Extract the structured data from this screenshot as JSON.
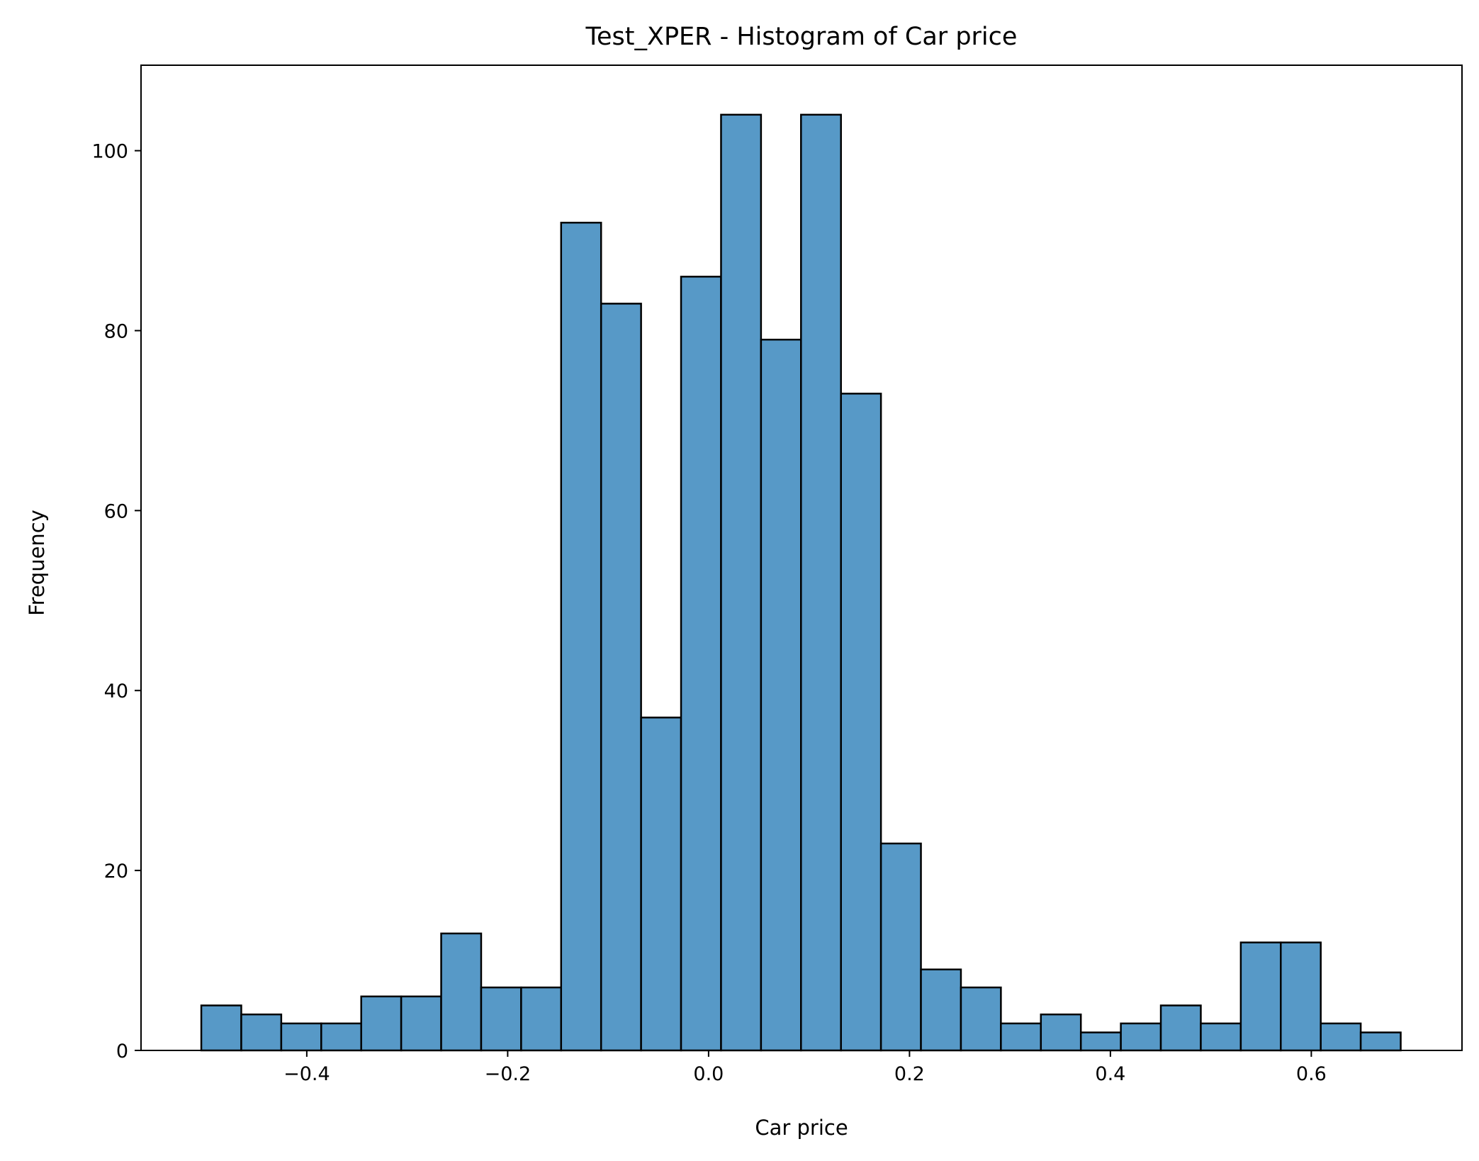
{
  "chart_data": {
    "type": "bar",
    "title": "Test_XPER - Histogram of Car price",
    "xlabel": "Car price",
    "ylabel": "Frequency",
    "bar_color": "#5799c7",
    "edge_color": "#000000",
    "bin_start": -0.505,
    "bin_width": 0.0398,
    "values": [
      5,
      4,
      3,
      3,
      6,
      6,
      13,
      7,
      7,
      92,
      83,
      37,
      86,
      104,
      79,
      104,
      73,
      23,
      9,
      7,
      3,
      4,
      2,
      3,
      5,
      3,
      12,
      12,
      3,
      2
    ],
    "xlim": [
      -0.565,
      0.75
    ],
    "ylim": [
      0,
      109.5
    ],
    "xticks": [
      -0.4,
      -0.2,
      0.0,
      0.2,
      0.4,
      0.6
    ],
    "xtick_labels": [
      "−0.4",
      "−0.2",
      "0.0",
      "0.2",
      "0.4",
      "0.6"
    ],
    "yticks": [
      0,
      20,
      40,
      60,
      80,
      100
    ],
    "ytick_labels": [
      "0",
      "20",
      "40",
      "60",
      "80",
      "100"
    ],
    "grid": false,
    "legend": "none"
  }
}
